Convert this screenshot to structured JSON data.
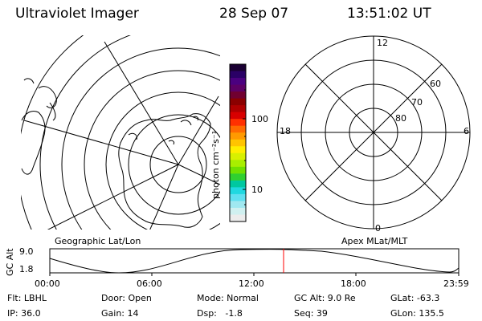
{
  "header": {
    "instrument": "Ultraviolet Imager",
    "date": "28 Sep 07",
    "time": "13:51:02 UT"
  },
  "geo_panel": {
    "label": "Geographic Lat/Lon"
  },
  "colorbar": {
    "unit_label": "photon cm⁻²s⁻¹",
    "tick_labels": [
      "100",
      "10"
    ],
    "colors": [
      "#1a0033",
      "#2a0066",
      "#4b0080",
      "#5c0066",
      "#700030",
      "#8b0000",
      "#b00000",
      "#d80000",
      "#ff3000",
      "#ff6a00",
      "#ff9a00",
      "#ffc400",
      "#ffee00",
      "#d8f000",
      "#a8ee00",
      "#70e000",
      "#30d030",
      "#00c8a0",
      "#20d8e0",
      "#60e0f0",
      "#a0e8f0",
      "#d0f0f0",
      "#ececec"
    ]
  },
  "polar_panel": {
    "label": "Apex MLat/MLT",
    "mlt_labels": {
      "top": "12",
      "left": "18",
      "right": "6",
      "bottom": "0"
    },
    "lat_labels": [
      "60",
      "70",
      "80"
    ]
  },
  "gc_alt_plot": {
    "ylabel": "GC Alt",
    "ymax_label": "9.0",
    "ymin_label": "1.8",
    "x_ticks": [
      "00:00",
      "06:00",
      "12:00",
      "18:00",
      "23:59"
    ],
    "marker_color": "#ff0000"
  },
  "footer": {
    "row1": [
      "Flt: LBHL",
      "Door: Open",
      "Mode: Normal",
      "GC Alt: 9.0 Re",
      "GLat: -63.3"
    ],
    "row2": [
      "IP: 36.0",
      "Gain: 14",
      "Dsp:   -1.8",
      "Seq: 39",
      "GLon: 135.5"
    ]
  }
}
